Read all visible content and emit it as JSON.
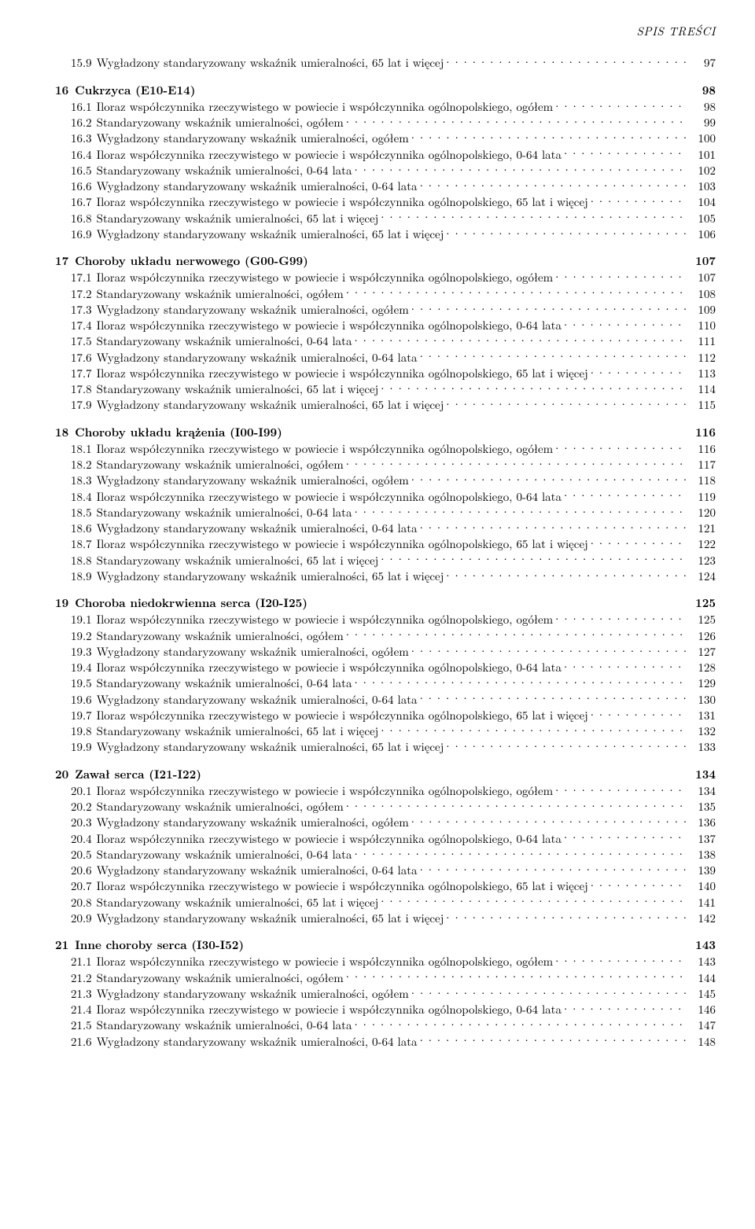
{
  "header": "SPIS TREŚCI",
  "preEntries": [
    {
      "num": "15.9",
      "title": "Wygładzony standaryzowany wskaźnik umieralności, 65 lat i więcej",
      "page": "97"
    }
  ],
  "sections": [
    {
      "num": "16",
      "title": "Cukrzyca (E10-E14)",
      "page": "98",
      "entries": [
        {
          "num": "16.1",
          "title": "Iloraz współczynnika rzeczywistego w powiecie i współczynnika ogólnopolskiego, ogółem",
          "page": "98"
        },
        {
          "num": "16.2",
          "title": "Standaryzowany wskaźnik umieralności, ogółem",
          "page": "99"
        },
        {
          "num": "16.3",
          "title": "Wygładzony standaryzowany wskaźnik umieralności, ogółem",
          "page": "100"
        },
        {
          "num": "16.4",
          "title": "Iloraz współczynnika rzeczywistego w powiecie i współczynnika ogólnopolskiego, 0-64 lata",
          "page": "101"
        },
        {
          "num": "16.5",
          "title": "Standaryzowany wskaźnik umieralności, 0-64 lata",
          "page": "102"
        },
        {
          "num": "16.6",
          "title": "Wygładzony standaryzowany wskaźnik umieralności, 0-64 lata",
          "page": "103"
        },
        {
          "num": "16.7",
          "title": "Iloraz współczynnika rzeczywistego w powiecie i współczynnika ogólnopolskiego, 65 lat i więcej",
          "page": "104"
        },
        {
          "num": "16.8",
          "title": "Standaryzowany wskaźnik umieralności, 65 lat i więcej",
          "page": "105"
        },
        {
          "num": "16.9",
          "title": "Wygładzony standaryzowany wskaźnik umieralności, 65 lat i więcej",
          "page": "106"
        }
      ]
    },
    {
      "num": "17",
      "title": "Choroby układu nerwowego (G00-G99)",
      "page": "107",
      "entries": [
        {
          "num": "17.1",
          "title": "Iloraz współczynnika rzeczywistego w powiecie i współczynnika ogólnopolskiego, ogółem",
          "page": "107"
        },
        {
          "num": "17.2",
          "title": "Standaryzowany wskaźnik umieralności, ogółem",
          "page": "108"
        },
        {
          "num": "17.3",
          "title": "Wygładzony standaryzowany wskaźnik umieralności, ogółem",
          "page": "109"
        },
        {
          "num": "17.4",
          "title": "Iloraz współczynnika rzeczywistego w powiecie i współczynnika ogólnopolskiego, 0-64 lata",
          "page": "110"
        },
        {
          "num": "17.5",
          "title": "Standaryzowany wskaźnik umieralności, 0-64 lata",
          "page": "111"
        },
        {
          "num": "17.6",
          "title": "Wygładzony standaryzowany wskaźnik umieralności, 0-64 lata",
          "page": "112"
        },
        {
          "num": "17.7",
          "title": "Iloraz współczynnika rzeczywistego w powiecie i współczynnika ogólnopolskiego, 65 lat i więcej",
          "page": "113"
        },
        {
          "num": "17.8",
          "title": "Standaryzowany wskaźnik umieralności, 65 lat i więcej",
          "page": "114"
        },
        {
          "num": "17.9",
          "title": "Wygładzony standaryzowany wskaźnik umieralności, 65 lat i więcej",
          "page": "115"
        }
      ]
    },
    {
      "num": "18",
      "title": "Choroby układu krążenia (I00-I99)",
      "page": "116",
      "entries": [
        {
          "num": "18.1",
          "title": "Iloraz współczynnika rzeczywistego w powiecie i współczynnika ogólnopolskiego, ogółem",
          "page": "116"
        },
        {
          "num": "18.2",
          "title": "Standaryzowany wskaźnik umieralności, ogółem",
          "page": "117"
        },
        {
          "num": "18.3",
          "title": "Wygładzony standaryzowany wskaźnik umieralności, ogółem",
          "page": "118"
        },
        {
          "num": "18.4",
          "title": "Iloraz współczynnika rzeczywistego w powiecie i współczynnika ogólnopolskiego, 0-64 lata",
          "page": "119"
        },
        {
          "num": "18.5",
          "title": "Standaryzowany wskaźnik umieralności, 0-64 lata",
          "page": "120"
        },
        {
          "num": "18.6",
          "title": "Wygładzony standaryzowany wskaźnik umieralności, 0-64 lata",
          "page": "121"
        },
        {
          "num": "18.7",
          "title": "Iloraz współczynnika rzeczywistego w powiecie i współczynnika ogólnopolskiego, 65 lat i więcej",
          "page": "122"
        },
        {
          "num": "18.8",
          "title": "Standaryzowany wskaźnik umieralności, 65 lat i więcej",
          "page": "123"
        },
        {
          "num": "18.9",
          "title": "Wygładzony standaryzowany wskaźnik umieralności, 65 lat i więcej",
          "page": "124"
        }
      ]
    },
    {
      "num": "19",
      "title": "Choroba niedokrwienna serca (I20-I25)",
      "page": "125",
      "entries": [
        {
          "num": "19.1",
          "title": "Iloraz współczynnika rzeczywistego w powiecie i współczynnika ogólnopolskiego, ogółem",
          "page": "125"
        },
        {
          "num": "19.2",
          "title": "Standaryzowany wskaźnik umieralności, ogółem",
          "page": "126"
        },
        {
          "num": "19.3",
          "title": "Wygładzony standaryzowany wskaźnik umieralności, ogółem",
          "page": "127"
        },
        {
          "num": "19.4",
          "title": "Iloraz współczynnika rzeczywistego w powiecie i współczynnika ogólnopolskiego, 0-64 lata",
          "page": "128"
        },
        {
          "num": "19.5",
          "title": "Standaryzowany wskaźnik umieralności, 0-64 lata",
          "page": "129"
        },
        {
          "num": "19.6",
          "title": "Wygładzony standaryzowany wskaźnik umieralności, 0-64 lata",
          "page": "130"
        },
        {
          "num": "19.7",
          "title": "Iloraz współczynnika rzeczywistego w powiecie i współczynnika ogólnopolskiego, 65 lat i więcej",
          "page": "131"
        },
        {
          "num": "19.8",
          "title": "Standaryzowany wskaźnik umieralności, 65 lat i więcej",
          "page": "132"
        },
        {
          "num": "19.9",
          "title": "Wygładzony standaryzowany wskaźnik umieralności, 65 lat i więcej",
          "page": "133"
        }
      ]
    },
    {
      "num": "20",
      "title": "Zawał serca (I21-I22)",
      "page": "134",
      "entries": [
        {
          "num": "20.1",
          "title": "Iloraz współczynnika rzeczywistego w powiecie i współczynnika ogólnopolskiego, ogółem",
          "page": "134"
        },
        {
          "num": "20.2",
          "title": "Standaryzowany wskaźnik umieralności, ogółem",
          "page": "135"
        },
        {
          "num": "20.3",
          "title": "Wygładzony standaryzowany wskaźnik umieralności, ogółem",
          "page": "136"
        },
        {
          "num": "20.4",
          "title": "Iloraz współczynnika rzeczywistego w powiecie i współczynnika ogólnopolskiego, 0-64 lata",
          "page": "137"
        },
        {
          "num": "20.5",
          "title": "Standaryzowany wskaźnik umieralności, 0-64 lata",
          "page": "138"
        },
        {
          "num": "20.6",
          "title": "Wygładzony standaryzowany wskaźnik umieralności, 0-64 lata",
          "page": "139"
        },
        {
          "num": "20.7",
          "title": "Iloraz współczynnika rzeczywistego w powiecie i współczynnika ogólnopolskiego, 65 lat i więcej",
          "page": "140"
        },
        {
          "num": "20.8",
          "title": "Standaryzowany wskaźnik umieralności, 65 lat i więcej",
          "page": "141"
        },
        {
          "num": "20.9",
          "title": "Wygładzony standaryzowany wskaźnik umieralności, 65 lat i więcej",
          "page": "142"
        }
      ]
    },
    {
      "num": "21",
      "title": "Inne choroby serca (I30-I52)",
      "page": "143",
      "entries": [
        {
          "num": "21.1",
          "title": "Iloraz współczynnika rzeczywistego w powiecie i współczynnika ogólnopolskiego, ogółem",
          "page": "143"
        },
        {
          "num": "21.2",
          "title": "Standaryzowany wskaźnik umieralności, ogółem",
          "page": "144"
        },
        {
          "num": "21.3",
          "title": "Wygładzony standaryzowany wskaźnik umieralności, ogółem",
          "page": "145"
        },
        {
          "num": "21.4",
          "title": "Iloraz współczynnika rzeczywistego w powiecie i współczynnika ogólnopolskiego, 0-64 lata",
          "page": "146"
        },
        {
          "num": "21.5",
          "title": "Standaryzowany wskaźnik umieralności, 0-64 lata",
          "page": "147"
        },
        {
          "num": "21.6",
          "title": "Wygładzony standaryzowany wskaźnik umieralności, 0-64 lata",
          "page": "148"
        }
      ]
    }
  ]
}
